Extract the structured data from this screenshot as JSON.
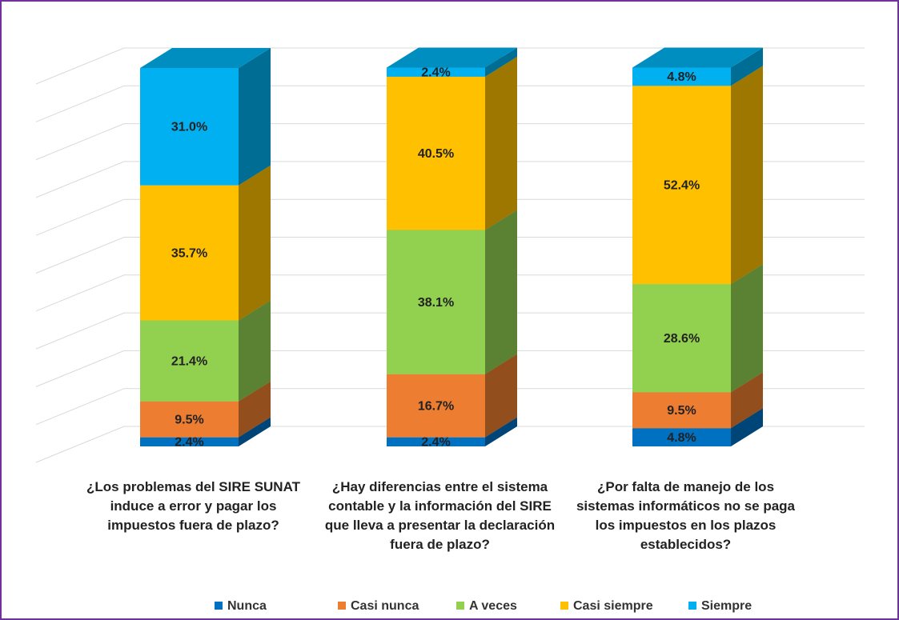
{
  "chart_data": {
    "type": "stacked_bar_3d",
    "categories": [
      "¿Los problemas del SIRE SUNAT induce a error y pagar los impuestos fuera de plazo?",
      "¿Hay diferencias entre el sistema contable y la información del SIRE que lleva a presentar la declaración fuera de plazo?",
      "¿Por falta de manejo de los sistemas informáticos no se paga los impuestos en los plazos establecidos?"
    ],
    "series": [
      {
        "name": "Nunca",
        "color": "#0070c0",
        "values": [
          2.4,
          2.4,
          4.8
        ],
        "value_labels": [
          "2.4%",
          "2.4%",
          "4.8%"
        ]
      },
      {
        "name": "Casi nunca",
        "color": "#ed7d31",
        "values": [
          9.5,
          16.7,
          9.5
        ],
        "value_labels": [
          "9.5%",
          "16.7%",
          "9.5%"
        ]
      },
      {
        "name": "A veces",
        "color": "#92d050",
        "values": [
          21.4,
          38.1,
          28.6
        ],
        "value_labels": [
          "21.4%",
          "38.1%",
          "28.6%"
        ]
      },
      {
        "name": "Casi siempre",
        "color": "#ffc000",
        "values": [
          35.7,
          40.5,
          52.4
        ],
        "value_labels": [
          "35.7%",
          "40.5%",
          "52.4%"
        ]
      },
      {
        "name": "Siempre",
        "color": "#00b0f0",
        "values": [
          31.0,
          2.4,
          4.8
        ],
        "value_labels": [
          "31.0%",
          "2.4%",
          "4.8%"
        ]
      }
    ],
    "ylim": [
      0,
      100
    ],
    "yticks": [
      0,
      10,
      20,
      30,
      40,
      50,
      60,
      70,
      80,
      90,
      100
    ],
    "grid": true,
    "legend": "bottom"
  }
}
